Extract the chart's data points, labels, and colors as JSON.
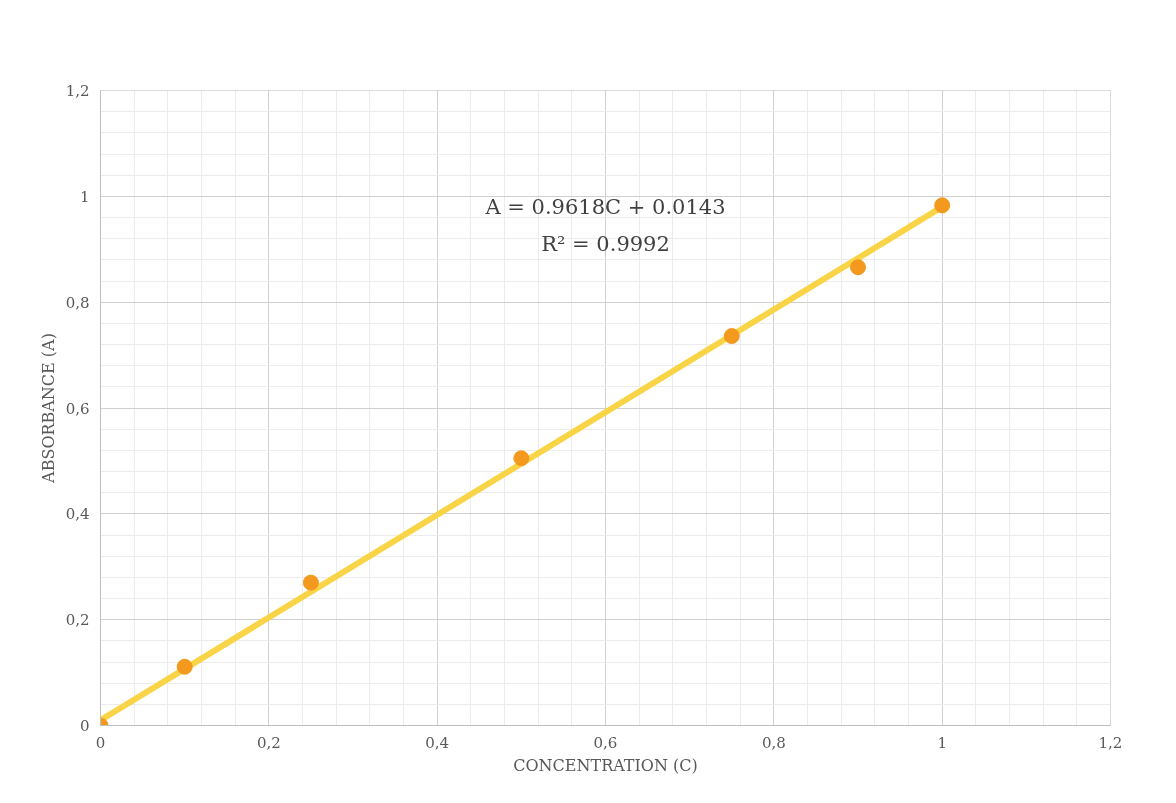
{
  "chart_data": {
    "type": "scatter",
    "xlabel": "CONCENTRATION (C)",
    "ylabel": "ABSORBANCE (A)",
    "annotations": [
      "A = 0.9618C + 0.0143",
      "R² = 0.9992"
    ],
    "series": [
      {
        "color": "#f39a1e",
        "x": [
          0,
          0.1,
          0.25,
          0.5,
          0.75,
          0.9,
          1
        ],
        "values": [
          0,
          0.111,
          0.27,
          0.505,
          0.736,
          0.866,
          0.983
        ],
        "marker": "circle"
      },
      {
        "type": "line",
        "color": "#f9d447",
        "x": [
          0,
          1
        ],
        "values": [
          0.01,
          0.98
        ],
        "line_style": "solid"
      }
    ],
    "xlim": [
      0,
      1.2
    ],
    "ylim": [
      0,
      1.2
    ],
    "xticks": [
      0,
      {
        "value": 0.04,
        "label": null
      },
      {
        "value": 0.08,
        "label": null
      },
      {
        "value": 0.12,
        "label": null
      },
      {
        "value": 0.16,
        "label": null
      },
      {
        "value": 0.2,
        "label": "0,2"
      },
      {
        "value": 0.24,
        "label": null
      },
      {
        "value": 0.28,
        "label": null
      },
      {
        "value": 0.32,
        "label": null
      },
      {
        "value": 0.36,
        "label": null
      },
      {
        "value": 0.4,
        "label": "0,4"
      },
      {
        "value": 0.44,
        "label": null
      },
      {
        "value": 0.48,
        "label": null
      },
      {
        "value": 0.52,
        "label": null
      },
      {
        "value": 0.56,
        "label": null
      },
      {
        "value": 0.6,
        "label": "0,6"
      },
      {
        "value": 0.64,
        "label": null
      },
      {
        "value": 0.68,
        "label": null
      },
      {
        "value": 0.72,
        "label": null
      },
      {
        "value": 0.76,
        "label": null
      },
      {
        "value": 0.8,
        "label": "0,8"
      },
      {
        "value": 0.84,
        "label": null
      },
      {
        "value": 0.88,
        "label": null
      },
      {
        "value": 0.92,
        "label": null
      },
      {
        "value": 0.96,
        "label": null
      },
      1,
      {
        "value": 1.04,
        "label": null
      },
      {
        "value": 1.08,
        "label": null
      },
      {
        "value": 1.12,
        "label": null
      },
      {
        "value": 1.16,
        "label": null
      },
      {
        "value": 1.2,
        "label": "1,2"
      }
    ],
    "yticks": [
      0,
      {
        "value": 0.04,
        "label": null
      },
      {
        "value": 0.08,
        "label": null
      },
      {
        "value": 0.12,
        "label": null
      },
      {
        "value": 0.16,
        "label": null
      },
      {
        "value": 0.2,
        "label": "0,2"
      },
      {
        "value": 0.24,
        "label": null
      },
      {
        "value": 0.28,
        "label": null
      },
      {
        "value": 0.32,
        "label": null
      },
      {
        "value": 0.36,
        "label": null
      },
      {
        "value": 0.4,
        "label": "0,4"
      },
      {
        "value": 0.44,
        "label": null
      },
      {
        "value": 0.48,
        "label": null
      },
      {
        "value": 0.52,
        "label": null
      },
      {
        "value": 0.56,
        "label": null
      },
      {
        "value": 0.6,
        "label": "0,6"
      },
      {
        "value": 0.64,
        "label": null
      },
      {
        "value": 0.68,
        "label": null
      },
      {
        "value": 0.72,
        "label": null
      },
      {
        "value": 0.76,
        "label": null
      },
      {
        "value": 0.8,
        "label": "0,8"
      },
      {
        "value": 0.84,
        "label": null
      },
      {
        "value": 0.88,
        "label": null
      },
      {
        "value": 0.92,
        "label": null
      },
      {
        "value": 0.96,
        "label": null
      },
      1,
      {
        "value": 1.04,
        "label": null
      },
      {
        "value": 1.08,
        "label": null
      },
      {
        "value": 1.12,
        "label": null
      },
      {
        "value": 1.16,
        "label": null
      },
      {
        "value": 1.2,
        "label": "1,2"
      }
    ],
    "grid": true
  }
}
